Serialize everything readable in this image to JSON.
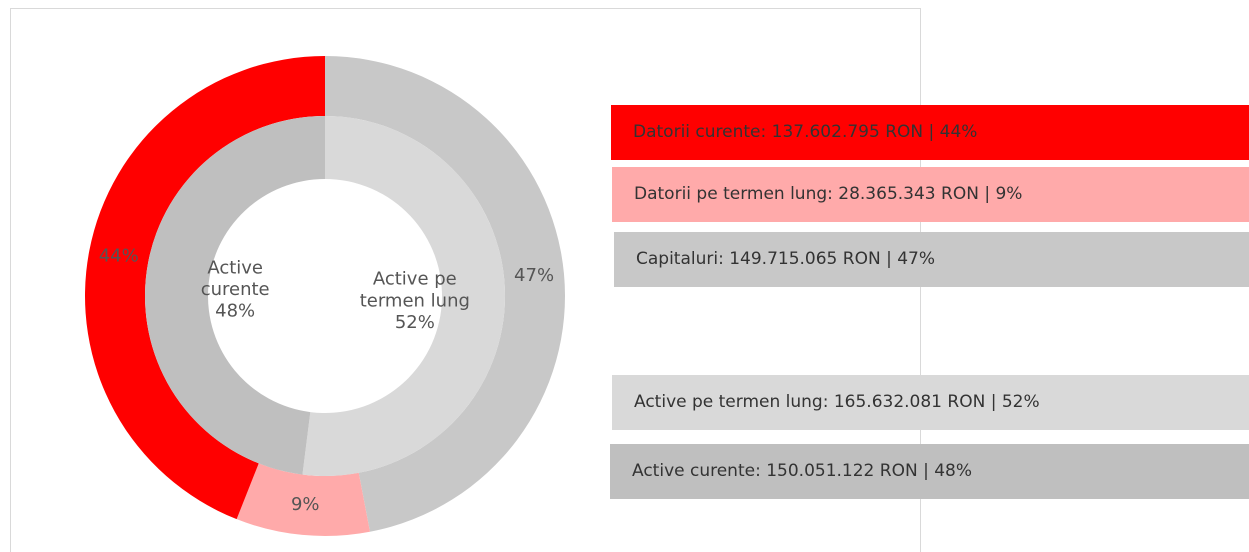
{
  "chart_data": {
    "type": "donut",
    "rings": [
      {
        "categories": [
          "Capitaluri",
          "Datorii pe termen lung",
          "Datorii curente"
        ],
        "values": [
          47,
          9,
          44
        ],
        "value_labels": [
          "47%",
          "9%",
          "44%"
        ],
        "colors": [
          "#c8c8c8",
          "#ffaaaa",
          "#ff0000"
        ]
      },
      {
        "categories": [
          "Active pe termen lung",
          "Active curente"
        ],
        "values": [
          52,
          48
        ],
        "value_labels": [
          "52%",
          "48%"
        ],
        "colors": [
          "#d9d9d9",
          "#bfbfbf"
        ]
      }
    ],
    "legend_groups": [
      [
        {
          "text": "Datorii curente: 137.602.795 RON | 44%",
          "color": "#ff0000"
        },
        {
          "text": "Datorii pe termen lung: 28.365.343 RON | 9%",
          "color": "#ffaaaa"
        },
        {
          "text": "Capitaluri: 149.715.065 RON | 47%",
          "color": "#c8c8c8"
        }
      ],
      [
        {
          "text": "Active pe termen lung: 165.632.081 RON | 52%",
          "color": "#d9d9d9"
        },
        {
          "text": "Active curente: 150.051.122 RON | 48%",
          "color": "#bfbfbf"
        }
      ]
    ]
  }
}
